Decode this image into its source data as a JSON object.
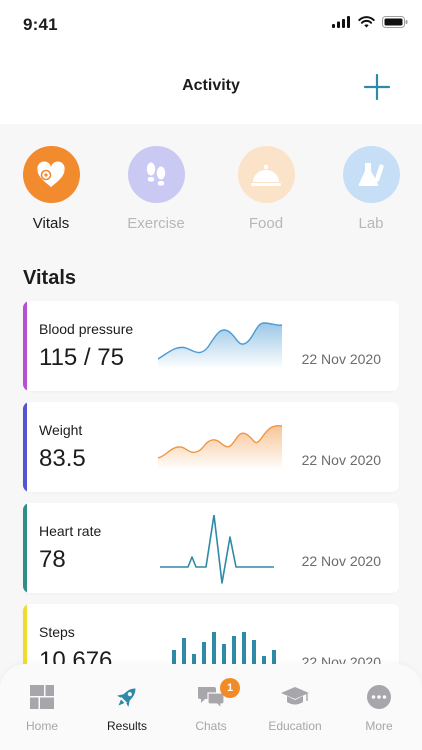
{
  "status_bar": {
    "time": "9:41"
  },
  "header": {
    "title": "Activity"
  },
  "categories": [
    {
      "label": "Vitals",
      "icon": "heart-icon",
      "color": "#f28a2e",
      "active": true
    },
    {
      "label": "Exercise",
      "icon": "footprints-icon",
      "color": "#c9c9f4",
      "active": false
    },
    {
      "label": "Food",
      "icon": "cloche-icon",
      "color": "#fbe3c9",
      "active": false
    },
    {
      "label": "Lab",
      "icon": "flask-icon",
      "color": "#c6dff6",
      "active": false
    }
  ],
  "section_title": "Vitals",
  "cards": [
    {
      "name": "Blood pressure",
      "value": "115 / 75",
      "date": "22 Nov 2020",
      "accent": "#b84fd0",
      "chart": "area",
      "chart_color": "#4a9ad3"
    },
    {
      "name": "Weight",
      "value": "83.5",
      "date": "22 Nov 2020",
      "accent": "#5553d1",
      "chart": "area",
      "chart_color": "#f09542"
    },
    {
      "name": "Heart rate",
      "value": "78",
      "date": "22 Nov 2020",
      "accent": "#2e8f89",
      "chart": "ecg",
      "chart_color": "#2e8aa6"
    },
    {
      "name": "Steps",
      "value": "10,676",
      "date": "22 Nov 2020",
      "accent": "#efdd2e",
      "chart": "bars",
      "chart_color": "#2e8aa6"
    }
  ],
  "tabs": [
    {
      "label": "Home",
      "icon": "grid-icon",
      "active": false
    },
    {
      "label": "Results",
      "icon": "rocket-icon",
      "active": true
    },
    {
      "label": "Chats",
      "icon": "chat-bubbles-icon",
      "active": false,
      "badge": "1"
    },
    {
      "label": "Education",
      "icon": "graduation-cap-icon",
      "active": false
    },
    {
      "label": "More",
      "icon": "more-dots-icon",
      "active": false
    }
  ]
}
